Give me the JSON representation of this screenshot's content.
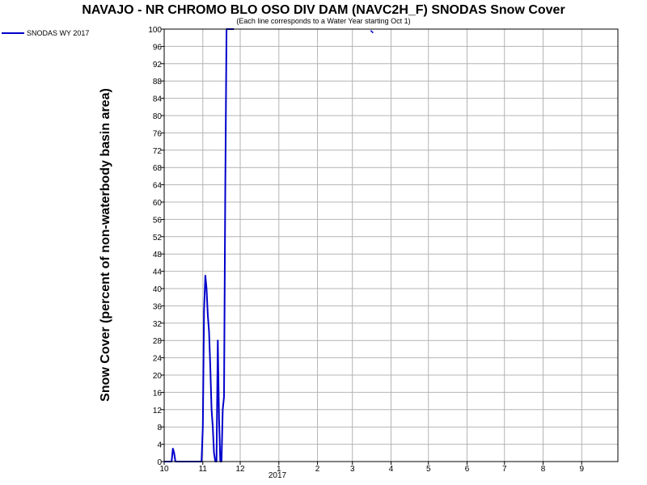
{
  "chart_data": {
    "type": "line",
    "title": "NAVAJO - NR CHROMO BLO OSO DIV DAM (NAVC2H_F) SNODAS Snow Cover",
    "subtitle": "(Each line corresponds to a Water Year starting Oct 1)",
    "xlabel": "",
    "ylabel": "Snow Cover (percent of non-waterbody basin area)",
    "ylim": [
      0,
      100
    ],
    "xlim": [
      "2016-10-01",
      "2017-09-30"
    ],
    "x_tick_labels": [
      "10",
      "11",
      "12",
      "1",
      "2",
      "3",
      "4",
      "5",
      "6",
      "7",
      "8",
      "9"
    ],
    "year_label": "2017",
    "y_ticks": [
      0,
      4,
      8,
      12,
      16,
      20,
      24,
      28,
      32,
      36,
      40,
      44,
      48,
      52,
      56,
      60,
      64,
      68,
      72,
      76,
      80,
      84,
      88,
      92,
      96,
      100
    ],
    "grid": true,
    "legend_position": "top-left",
    "colors": {
      "series": "#0000cc",
      "grid": "#b4b4b4"
    },
    "series": [
      {
        "name": "SNODAS WY 2017",
        "x": [
          "2016-10-01",
          "2016-10-07",
          "2016-10-08",
          "2016-10-09",
          "2016-10-10",
          "2016-10-11",
          "2016-10-12",
          "2016-10-20",
          "2016-10-31",
          "2016-11-01",
          "2016-11-02",
          "2016-11-03",
          "2016-11-04",
          "2016-11-05",
          "2016-11-06",
          "2016-11-07",
          "2016-11-08",
          "2016-11-09",
          "2016-11-10",
          "2016-11-11",
          "2016-11-12",
          "2016-11-13",
          "2016-11-14",
          "2016-11-15",
          "2016-11-16",
          "2016-11-17",
          "2016-11-18",
          "2016-11-19",
          "2016-11-20",
          "2016-11-21",
          "2016-11-22",
          "2016-11-23",
          "2016-11-24",
          "2016-11-25",
          "2016-11-26"
        ],
        "values": [
          0,
          0,
          3,
          2,
          0,
          0,
          0,
          0,
          0,
          8,
          35,
          43,
          40,
          34,
          30,
          22,
          12,
          8,
          2,
          0,
          0,
          28,
          10,
          0,
          0,
          12,
          15,
          62,
          100,
          100,
          100,
          100,
          100,
          100,
          100
        ]
      }
    ],
    "annotation_text": "",
    "stray_mark": {
      "date": "2017-03-17",
      "value": 99.5
    }
  }
}
